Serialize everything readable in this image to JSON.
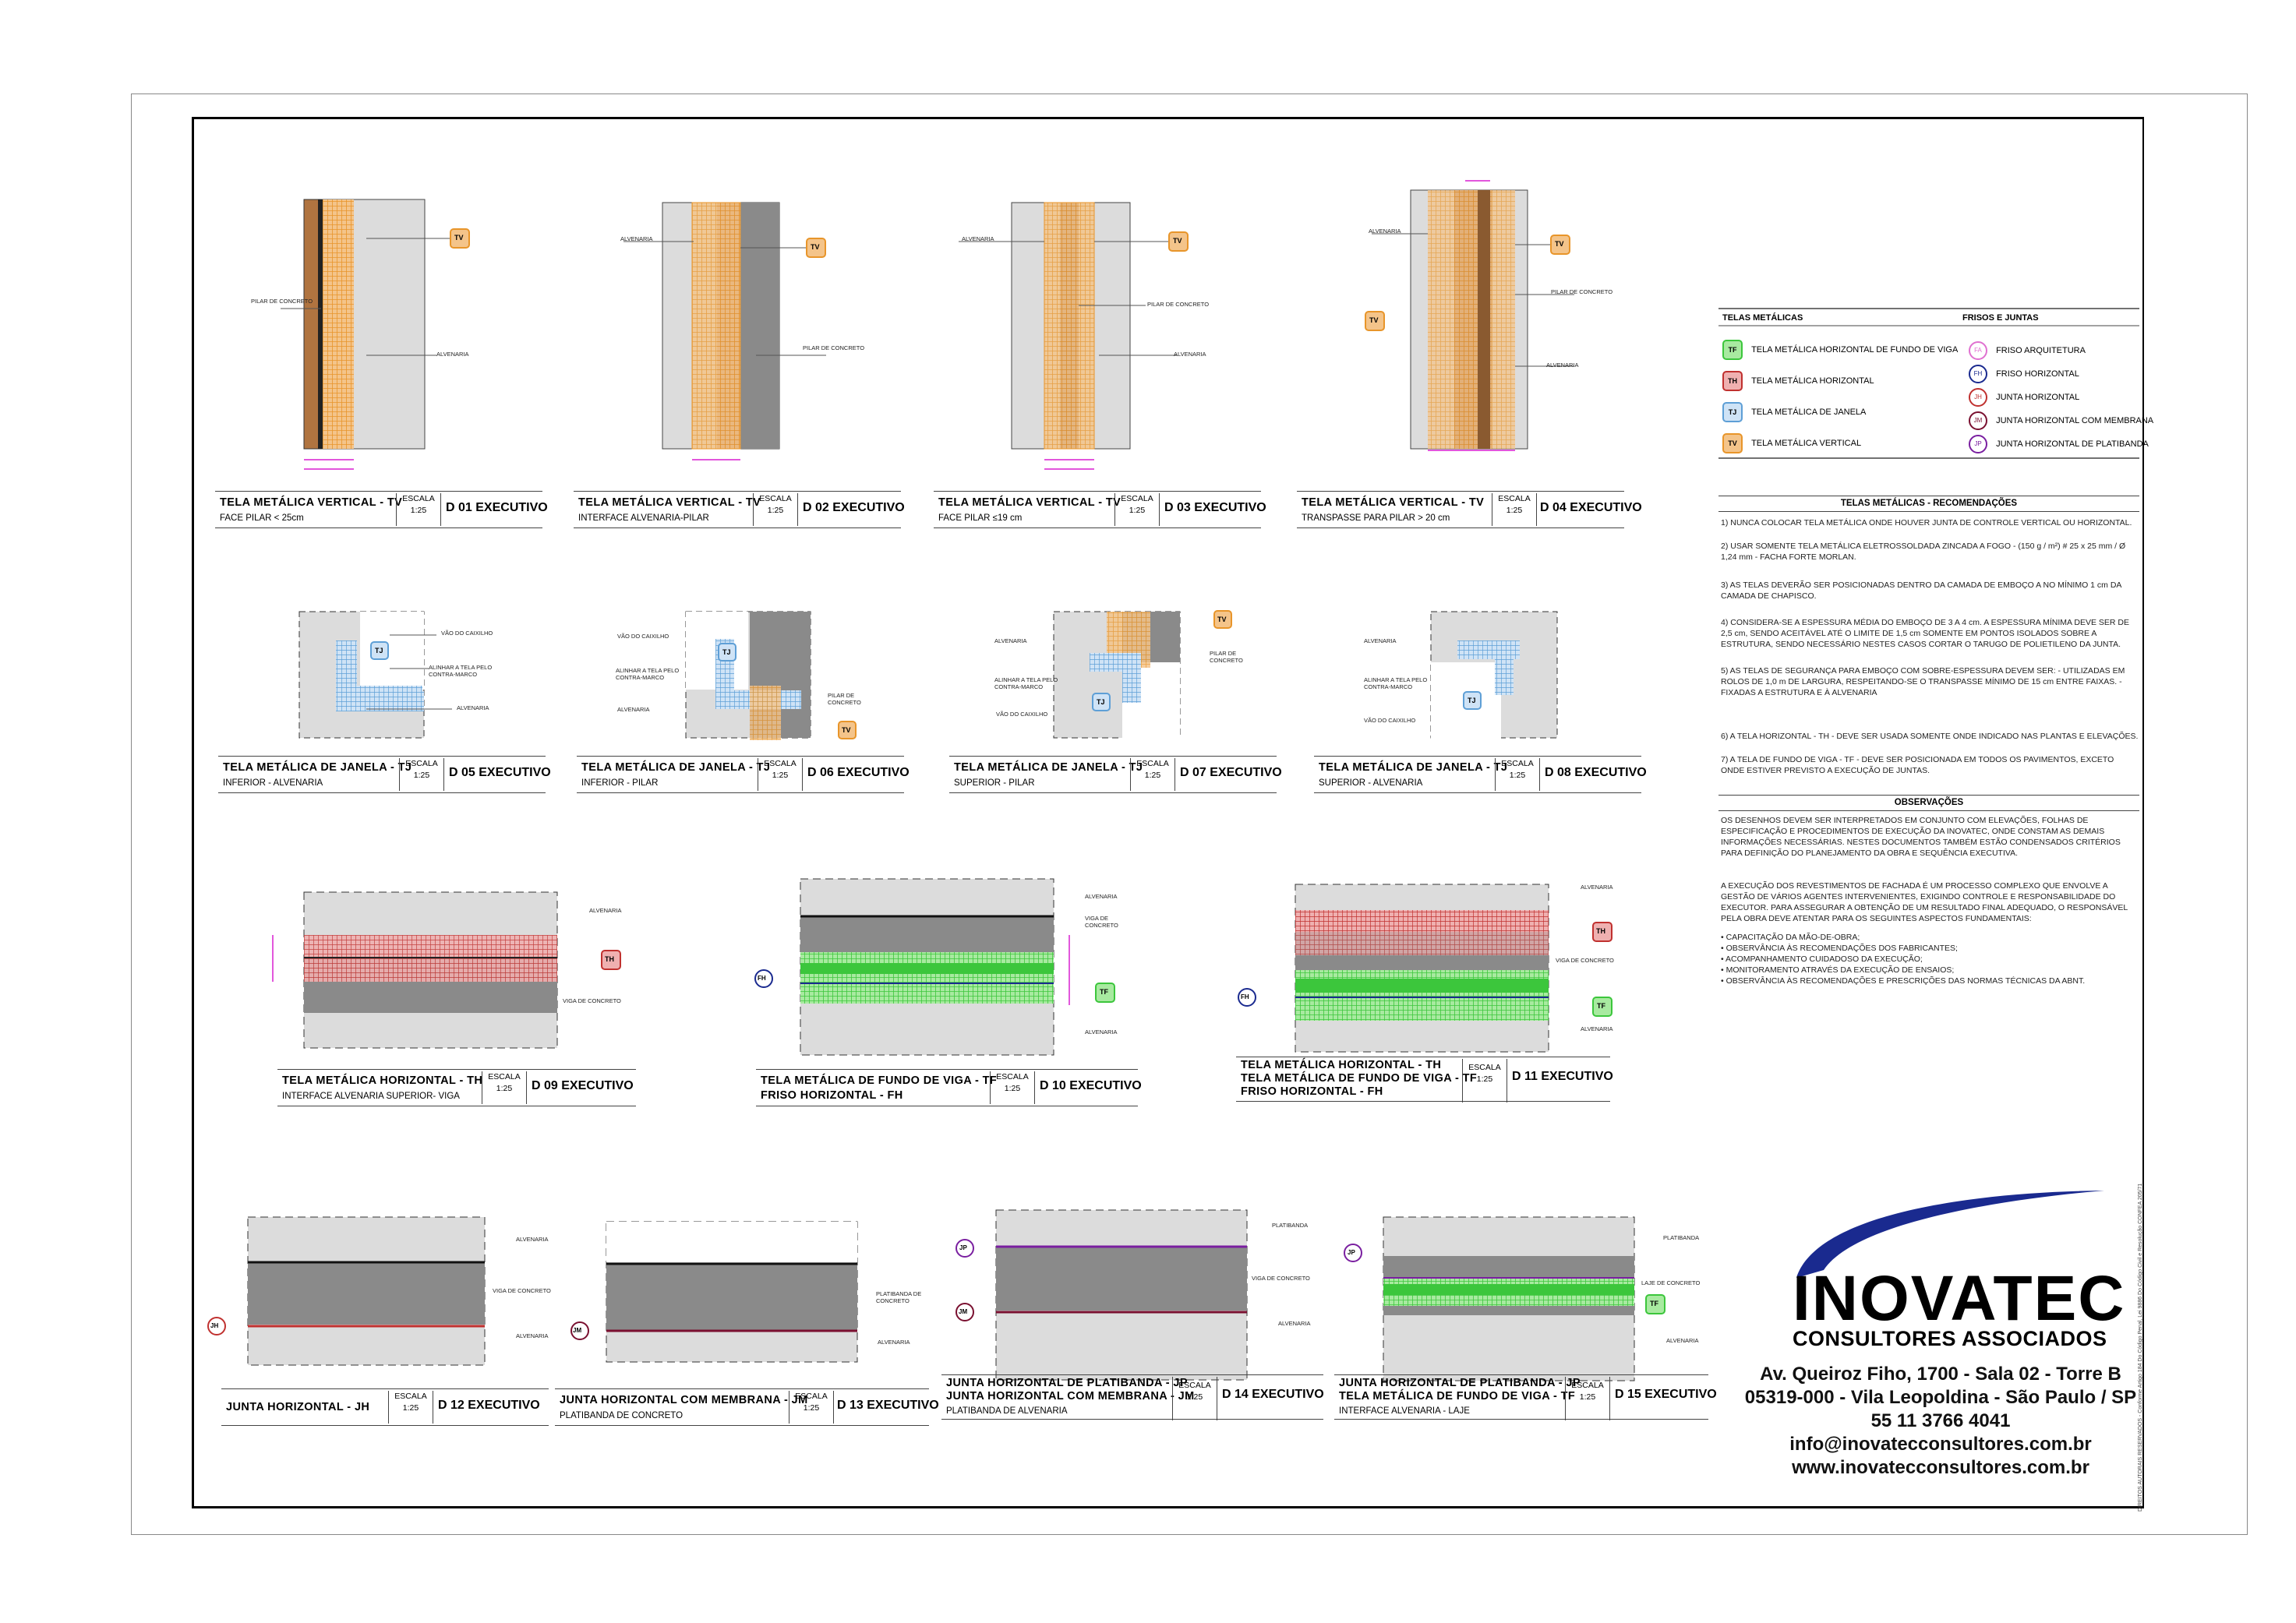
{
  "colors": {
    "orange": "#e8952a",
    "brown": "#b07440",
    "gray": "#8a8a8a",
    "lightgray": "#dcdcdc",
    "magenta": "#d81fd0",
    "green": "#3cc63c",
    "red": "#c0312f",
    "blue": "#5e9fd6",
    "navy": "#1a2a8f",
    "purple": "#7a1fa0"
  },
  "details": [
    {
      "id": "d01",
      "title": "TELA METÁLICA VERTICAL - TV",
      "subtitle": "FACE PILAR < 25cm",
      "escala": "ESCALA",
      "escala_val": "1:25",
      "code": "D 01 EXECUTIVO",
      "labels": [
        "PILAR DE CONCRETO",
        "ALVENARIA",
        "TV"
      ]
    },
    {
      "id": "d02",
      "title": "TELA METÁLICA VERTICAL - TV",
      "subtitle": "INTERFACE ALVENARIA-PILAR",
      "escala": "ESCALA",
      "escala_val": "1:25",
      "code": "D 02 EXECUTIVO",
      "labels": [
        "ALVENARIA",
        "PILAR DE CONCRETO",
        "TV"
      ]
    },
    {
      "id": "d03",
      "title": "TELA METÁLICA VERTICAL - TV",
      "subtitle": "FACE PILAR ≤19 cm",
      "escala": "ESCALA",
      "escala_val": "1:25",
      "code": "D 03 EXECUTIVO",
      "labels": [
        "ALVENARIA",
        "PILAR DE CONCRETO",
        "ALVENARIA",
        "TV"
      ]
    },
    {
      "id": "d04",
      "title": "TELA METÁLICA VERTICAL - TV",
      "subtitle": "TRANSPASSE PARA PILAR > 20 cm",
      "escala": "ESCALA",
      "escala_val": "1:25",
      "code": "D 04 EXECUTIVO",
      "labels": [
        "ALVENARIA",
        "PILAR DE CONCRETO",
        "ALVENARIA",
        "TV",
        "TV"
      ]
    },
    {
      "id": "d05",
      "title": "TELA METÁLICA DE JANELA - TJ",
      "subtitle": "INFERIOR - ALVENARIA",
      "escala": "ESCALA",
      "escala_val": "1:25",
      "code": "D 05 EXECUTIVO",
      "labels": [
        "VÃO DO CAIXILHO",
        "ALINHAR A TELA PELO CONTRA-MARCO",
        "ALVENARIA",
        "TJ"
      ]
    },
    {
      "id": "d06",
      "title": "TELA METÁLICA DE JANELA - TJ",
      "subtitle": "INFERIOR - PILAR",
      "escala": "ESCALA",
      "escala_val": "1:25",
      "code": "D 06 EXECUTIVO",
      "labels": [
        "VÃO DO CAIXILHO",
        "ALINHAR A TELA PELO CONTRA-MARCO",
        "ALVENARIA",
        "PILAR DE CONCRETO",
        "TJ",
        "TV"
      ]
    },
    {
      "id": "d07",
      "title": "TELA METÁLICA DE JANELA - TJ",
      "subtitle": "SUPERIOR - PILAR",
      "escala": "ESCALA",
      "escala_val": "1:25",
      "code": "D 07 EXECUTIVO",
      "labels": [
        "ALVENARIA",
        "ALINHAR A TELA PELO CONTRA-MARCO",
        "VÃO DO CAIXILHO",
        "PILAR DE CONCRETO",
        "TJ",
        "TV"
      ]
    },
    {
      "id": "d08",
      "title": "TELA METÁLICA DE JANELA - TJ",
      "subtitle": "SUPERIOR - ALVENARIA",
      "escala": "ESCALA",
      "escala_val": "1:25",
      "code": "D 08 EXECUTIVO",
      "labels": [
        "ALVENARIA",
        "ALINHAR A TELA PELO CONTRA-MARCO",
        "VÃO DO CAIXILHO",
        "TJ"
      ]
    },
    {
      "id": "d09",
      "title": "TELA METÁLICA HORIZONTAL - TH",
      "subtitle": "INTERFACE ALVENARIA SUPERIOR- VIGA",
      "escala": "ESCALA",
      "escala_val": "1:25",
      "code": "D 09 EXECUTIVO",
      "labels": [
        "ALVENARIA",
        "VIGA DE CONCRETO",
        "TH"
      ]
    },
    {
      "id": "d10",
      "title": "TELA METÁLICA DE FUNDO DE VIGA - TF",
      "title2": "FRISO HORIZONTAL - FH",
      "escala": "ESCALA",
      "escala_val": "1:25",
      "code": "D 10 EXECUTIVO",
      "labels": [
        "ALVENARIA",
        "VIGA DE CONCRETO",
        "ALVENARIA",
        "TF",
        "FH"
      ]
    },
    {
      "id": "d11",
      "title": "TELA METÁLICA HORIZONTAL - TH",
      "title2": "TELA METÁLICA DE FUNDO DE VIGA - TF",
      "title3": "FRISO HORIZONTAL - FH",
      "escala": "ESCALA",
      "escala_val": "1:25",
      "code": "D 11 EXECUTIVO",
      "labels": [
        "ALVENARIA",
        "VIGA DE CONCRETO",
        "ALVENARIA",
        "TH",
        "TF",
        "FH"
      ]
    },
    {
      "id": "d12",
      "title": "JUNTA HORIZONTAL - JH",
      "escala": "ESCALA",
      "escala_val": "1:25",
      "code": "D 12 EXECUTIVO",
      "labels": [
        "ALVENARIA",
        "VIGA DE CONCRETO",
        "ALVENARIA",
        "JH"
      ]
    },
    {
      "id": "d13",
      "title": "JUNTA HORIZONTAL COM MEMBRANA - JM",
      "subtitle": "PLATIBANDA DE CONCRETO",
      "escala": "ESCALA",
      "escala_val": "1:25",
      "code": "D 13 EXECUTIVO",
      "labels": [
        "PLATIBANDA DE CONCRETO",
        "ALVENARIA",
        "JM"
      ]
    },
    {
      "id": "d14",
      "title": "JUNTA HORIZONTAL DE PLATIBANDA - JP",
      "title2": "JUNTA HORIZONTAL COM MEMBRANA - JM",
      "subtitle": "PLATIBANDA DE ALVENARIA",
      "escala": "ESCALA",
      "escala_val": "1:25",
      "code": "D 14 EXECUTIVO",
      "labels": [
        "PLATIBANDA",
        "VIGA DE CONCRETO",
        "ALVENARIA",
        "JP",
        "JM"
      ]
    },
    {
      "id": "d15",
      "title": "JUNTA HORIZONTAL DE PLATIBANDA - JP",
      "title2": "TELA METÁLICA DE FUNDO DE VIGA - TF",
      "subtitle": "INTERFACE ALVENARIA - LAJE",
      "escala": "ESCALA",
      "escala_val": "1:25",
      "code": "D 15 EXECUTIVO",
      "labels": [
        "PLATIBANDA",
        "LAJE DE CONCRETO",
        "ALVENARIA",
        "JP",
        "TF"
      ]
    }
  ],
  "legend": {
    "telas_title": "TELAS METÁLICAS",
    "telas": [
      {
        "tag": "TF",
        "label": "TELA METÁLICA HORIZONTAL DE FUNDO DE VIGA",
        "color": "#3cc63c"
      },
      {
        "tag": "TH",
        "label": "TELA METÁLICA HORIZONTAL",
        "color": "#c0312f"
      },
      {
        "tag": "TJ",
        "label": "TELA METÁLICA DE JANELA",
        "color": "#5e9fd6"
      },
      {
        "tag": "TV",
        "label": "TELA METÁLICA VERTICAL",
        "color": "#e8952a"
      }
    ],
    "frisos_title": "FRISOS E JUNTAS",
    "frisos": [
      {
        "tag": "FA",
        "label": "FRISO ARQUITETURA",
        "color": "#e070d0"
      },
      {
        "tag": "FH",
        "label": "FRISO HORIZONTAL",
        "color": "#1a2a8f"
      },
      {
        "tag": "JH",
        "label": "JUNTA HORIZONTAL",
        "color": "#c0312f"
      },
      {
        "tag": "JM",
        "label": "JUNTA HORIZONTAL COM MEMBRANA",
        "color": "#7a1030"
      },
      {
        "tag": "JP",
        "label": "JUNTA HORIZONTAL DE PLATIBANDA",
        "color": "#7a1fa0"
      }
    ]
  },
  "recommendations": {
    "title": "TELAS METÁLICAS - RECOMENDAÇÕES",
    "items": [
      "1)   NUNCA COLOCAR TELA METÁLICA ONDE HOUVER JUNTA DE CONTROLE VERTICAL OU HORIZONTAL.",
      "2)   USAR SOMENTE TELA METÁLICA ELETROSSOLDADA ZINCADA A FOGO - (150 g / m²) # 25 x 25 mm / Ø 1,24 mm - FACHA FORTE MORLAN.",
      "3)   AS TELAS DEVERÃO SER POSICIONADAS DENTRO DA CAMADA DE EMBOÇO A NO MÍNIMO 1 cm DA CAMADA DE CHAPISCO.",
      "4)   CONSIDERA-SE A ESPESSURA MÉDIA DO EMBOÇO DE 3 A 4 cm. A ESPESSURA MÍNIMA DEVE SER DE 2,5 cm, SENDO ACEITÁVEL ATÉ O LIMITE DE 1,5 cm SOMENTE EM PONTOS ISOLADOS SOBRE A ESTRUTURA, SENDO NECESSÁRIO NESTES CASOS CORTAR O TARUGO DE POLIETILENO DA JUNTA.",
      "5)   AS TELAS DE SEGURANÇA PARA EMBOÇO COM SOBRE-ESPESSURA DEVEM SER: - UTILIZADAS EM ROLOS DE 1,0 m DE LARGURA, RESPEITANDO-SE O TRANSPASSE MÍNIMO DE 15 cm ENTRE FAIXAS. - FIXADAS A ESTRUTURA E À ALVENARIA",
      "6) A TELA HORIZONTAL - TH - DEVE SER USADA SOMENTE ONDE INDICADO NAS PLANTAS E ELEVAÇÕES.",
      "7) A TELA DE FUNDO DE VIGA - TF - DEVE SER POSICIONADA EM TODOS OS PAVIMENTOS, EXCETO ONDE ESTIVER PREVISTO A EXECUÇÃO DE JUNTAS."
    ]
  },
  "observations": {
    "title": "OBSERVAÇÕES",
    "p1": "OS DESENHOS DEVEM SER INTERPRETADOS EM CONJUNTO COM ELEVAÇÕES, FOLHAS DE ESPECIFICAÇÃO E PROCEDIMENTOS DE EXECUÇÃO DA INOVATEC, ONDE CONSTAM AS DEMAIS INFORMAÇÕES NECESSÁRIAS. NESTES DOCUMENTOS TAMBÉM ESTÃO CONDENSADOS CRITÉRIOS PARA DEFINIÇÃO DO PLANEJAMENTO DA OBRA E SEQUÊNCIA EXECUTIVA.",
    "p2": "A EXECUÇÃO DOS REVESTIMENTOS DE FACHADA É UM PROCESSO COMPLEXO QUE ENVOLVE A GESTÃO DE VÁRIOS AGENTES INTERVENIENTES, EXIGINDO CONTROLE E RESPONSABILIDADE DO EXECUTOR. PARA ASSEGURAR A OBTENÇÃO DE UM RESULTADO FINAL ADEQUADO, O RESPONSÁVEL PELA OBRA DEVE ATENTAR PARA OS SEGUINTES ASPECTOS FUNDAMENTAIS:",
    "bullets": [
      "• CAPACITAÇÃO DA MÃO-DE-OBRA;",
      "• OBSERVÂNCIA ÀS RECOMENDAÇÕES DOS FABRICANTES;",
      "• ACOMPANHAMENTO CUIDADOSO DA EXECUÇÃO;",
      "• MONITORAMENTO ATRAVÉS DA EXECUÇÃO DE ENSAIOS;",
      "• OBSERVÂNCIA ÀS RECOMENDAÇÕES E PRESCRIÇÕES DAS NORMAS TÉCNICAS DA ABNT."
    ]
  },
  "company": {
    "name": "INOVATEC",
    "tagline": "CONSULTORES ASSOCIADOS",
    "address1": "Av. Queiroz Fiho, 1700 - Sala 02 - Torre B",
    "address2": "05319-000 - Vila Leopoldina - São Paulo / SP",
    "phone": "55 11 3766 4041",
    "email": "info@inovatecconsultores.com.br",
    "web": "www.inovatecconsultores.com.br",
    "side_note": "DIREITOS AUTORAIS RESERVADOS - Conforme Artigo 184 Do Código Penal, Lei 9886 Do Código Civil e Resolução CONFEA 205/71"
  }
}
